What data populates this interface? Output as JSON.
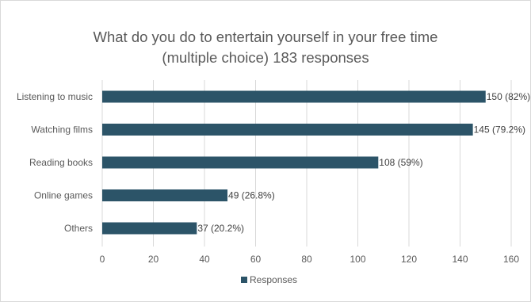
{
  "chart_data": {
    "type": "bar",
    "orientation": "horizontal",
    "title_lines": [
      "What do you do to entertain yourself in your free time",
      "(multiple choice) 183 responses"
    ],
    "categories": [
      "Listening to music",
      "Watching films",
      "Reading books",
      "Online games",
      "Others"
    ],
    "series": [
      {
        "name": "Responses",
        "color": "#2c5468",
        "values": [
          150,
          145,
          108,
          49,
          37
        ],
        "labels": [
          "150 (82%)",
          "145 (79.2%)",
          "108 (59%)",
          "49 (26.8%)",
          "37 (20.2%)"
        ]
      }
    ],
    "xlim": [
      0,
      160
    ],
    "x_ticks": [
      "0",
      "20",
      "40",
      "60",
      "80",
      "100",
      "120",
      "140",
      "160"
    ],
    "grid": true,
    "legend_position": "bottom",
    "gridline_color": "#d9d9d9"
  }
}
